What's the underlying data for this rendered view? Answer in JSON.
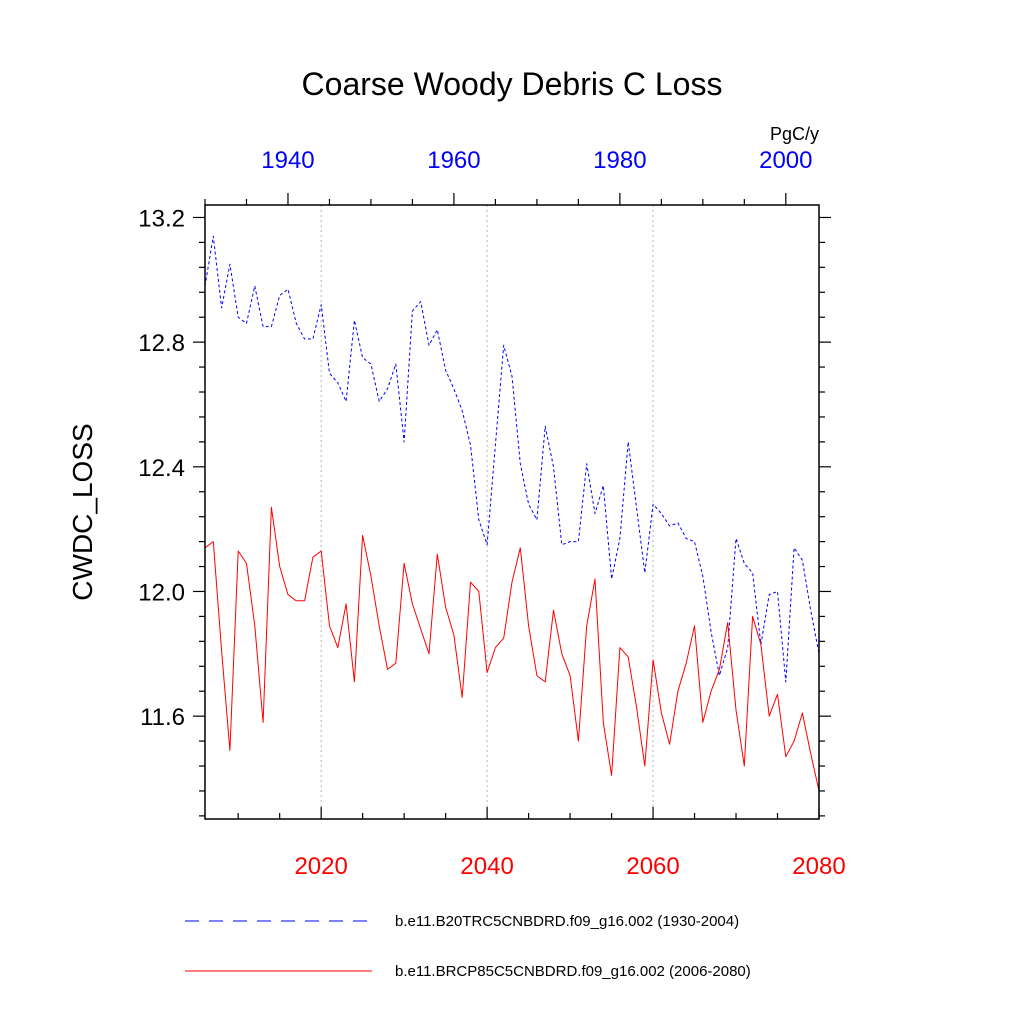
{
  "chart_data": {
    "type": "line",
    "title": "Coarse Woody Debris C Loss",
    "units": "PgC/y",
    "ylabel": "CWDC_LOSS",
    "ylim": [
      11.27,
      13.24
    ],
    "y_ticks": [
      "11.6",
      "12.0",
      "12.4",
      "12.8",
      "13.2"
    ],
    "y_tick_values": [
      11.6,
      12.0,
      12.4,
      12.8,
      13.2
    ],
    "grid": "vertical dotted lines at major bottom-axis years",
    "legend_position": "bottom",
    "colors": {
      "top_axis": "#0000ff",
      "bottom_axis": "#ff0000",
      "series_1": "#0000ff",
      "series_2": "#ff0000"
    },
    "top_axis": {
      "xlim": [
        1930,
        2004
      ],
      "ticks": [
        "1940",
        "1960",
        "1980",
        "2000"
      ],
      "tick_values": [
        1940,
        1960,
        1980,
        2000
      ]
    },
    "bottom_axis": {
      "xlim": [
        2006,
        2080
      ],
      "ticks": [
        "2020",
        "2040",
        "2060",
        "2080"
      ],
      "tick_values": [
        2020,
        2040,
        2060,
        2080
      ]
    },
    "series": [
      {
        "name": "b.e11.B20TRC5CNBDRD.f09_g16.002 (1930-2004)",
        "axis": "top",
        "style": "dashed",
        "x": [
          1930,
          1931,
          1932,
          1933,
          1934,
          1935,
          1936,
          1937,
          1938,
          1939,
          1940,
          1941,
          1942,
          1943,
          1944,
          1945,
          1946,
          1947,
          1948,
          1949,
          1950,
          1951,
          1952,
          1953,
          1954,
          1955,
          1956,
          1957,
          1958,
          1959,
          1960,
          1961,
          1962,
          1963,
          1964,
          1965,
          1966,
          1967,
          1968,
          1969,
          1970,
          1971,
          1972,
          1973,
          1974,
          1975,
          1976,
          1977,
          1978,
          1979,
          1980,
          1981,
          1982,
          1983,
          1984,
          1985,
          1986,
          1987,
          1988,
          1989,
          1990,
          1991,
          1992,
          1993,
          1994,
          1995,
          1996,
          1997,
          1998,
          1999,
          2000,
          2001,
          2002,
          2003,
          2004
        ],
        "values": [
          12.98,
          13.14,
          12.91,
          13.05,
          12.88,
          12.86,
          12.98,
          12.85,
          12.85,
          12.95,
          12.97,
          12.86,
          12.81,
          12.81,
          12.92,
          12.7,
          12.67,
          12.61,
          12.87,
          12.75,
          12.73,
          12.61,
          12.65,
          12.73,
          12.48,
          12.9,
          12.93,
          12.79,
          12.84,
          12.71,
          12.65,
          12.58,
          12.47,
          12.23,
          12.15,
          12.47,
          12.79,
          12.69,
          12.41,
          12.28,
          12.23,
          12.53,
          12.4,
          12.15,
          12.16,
          12.16,
          12.41,
          12.25,
          12.34,
          12.04,
          12.17,
          12.48,
          12.27,
          12.06,
          12.28,
          12.25,
          12.21,
          12.22,
          12.17,
          12.16,
          12.05,
          11.87,
          11.73,
          11.82,
          12.17,
          12.09,
          12.06,
          11.83,
          11.99,
          12.0,
          11.71,
          12.14,
          12.1,
          11.94,
          11.8
        ]
      },
      {
        "name": "b.e11.BRCP85C5CNBDRD.f09_g16.002 (2006-2080)",
        "axis": "bottom",
        "style": "solid",
        "x": [
          2006,
          2007,
          2008,
          2009,
          2010,
          2011,
          2012,
          2013,
          2014,
          2015,
          2016,
          2017,
          2018,
          2019,
          2020,
          2021,
          2022,
          2023,
          2024,
          2025,
          2026,
          2027,
          2028,
          2029,
          2030,
          2031,
          2032,
          2033,
          2034,
          2035,
          2036,
          2037,
          2038,
          2039,
          2040,
          2041,
          2042,
          2043,
          2044,
          2045,
          2046,
          2047,
          2048,
          2049,
          2050,
          2051,
          2052,
          2053,
          2054,
          2055,
          2056,
          2057,
          2058,
          2059,
          2060,
          2061,
          2062,
          2063,
          2064,
          2065,
          2066,
          2067,
          2068,
          2069,
          2070,
          2071,
          2072,
          2073,
          2074,
          2075,
          2076,
          2077,
          2078,
          2079,
          2080
        ],
        "values": [
          12.14,
          12.16,
          11.81,
          11.49,
          12.13,
          12.09,
          11.89,
          11.58,
          12.27,
          12.08,
          11.99,
          11.97,
          11.97,
          12.11,
          12.13,
          11.89,
          11.82,
          11.96,
          11.71,
          12.18,
          12.05,
          11.89,
          11.75,
          11.77,
          12.09,
          11.96,
          11.88,
          11.8,
          12.12,
          11.95,
          11.86,
          11.66,
          12.03,
          12.0,
          11.74,
          11.82,
          11.85,
          12.03,
          12.14,
          11.89,
          11.73,
          11.71,
          11.94,
          11.8,
          11.73,
          11.52,
          11.89,
          12.04,
          11.58,
          11.41,
          11.82,
          11.79,
          11.63,
          11.44,
          11.78,
          11.61,
          11.51,
          11.68,
          11.77,
          11.89,
          11.58,
          11.68,
          11.75,
          11.9,
          11.62,
          11.44,
          11.92,
          11.83,
          11.6,
          11.67,
          11.47,
          11.52,
          11.61,
          11.48,
          11.36
        ]
      }
    ]
  }
}
